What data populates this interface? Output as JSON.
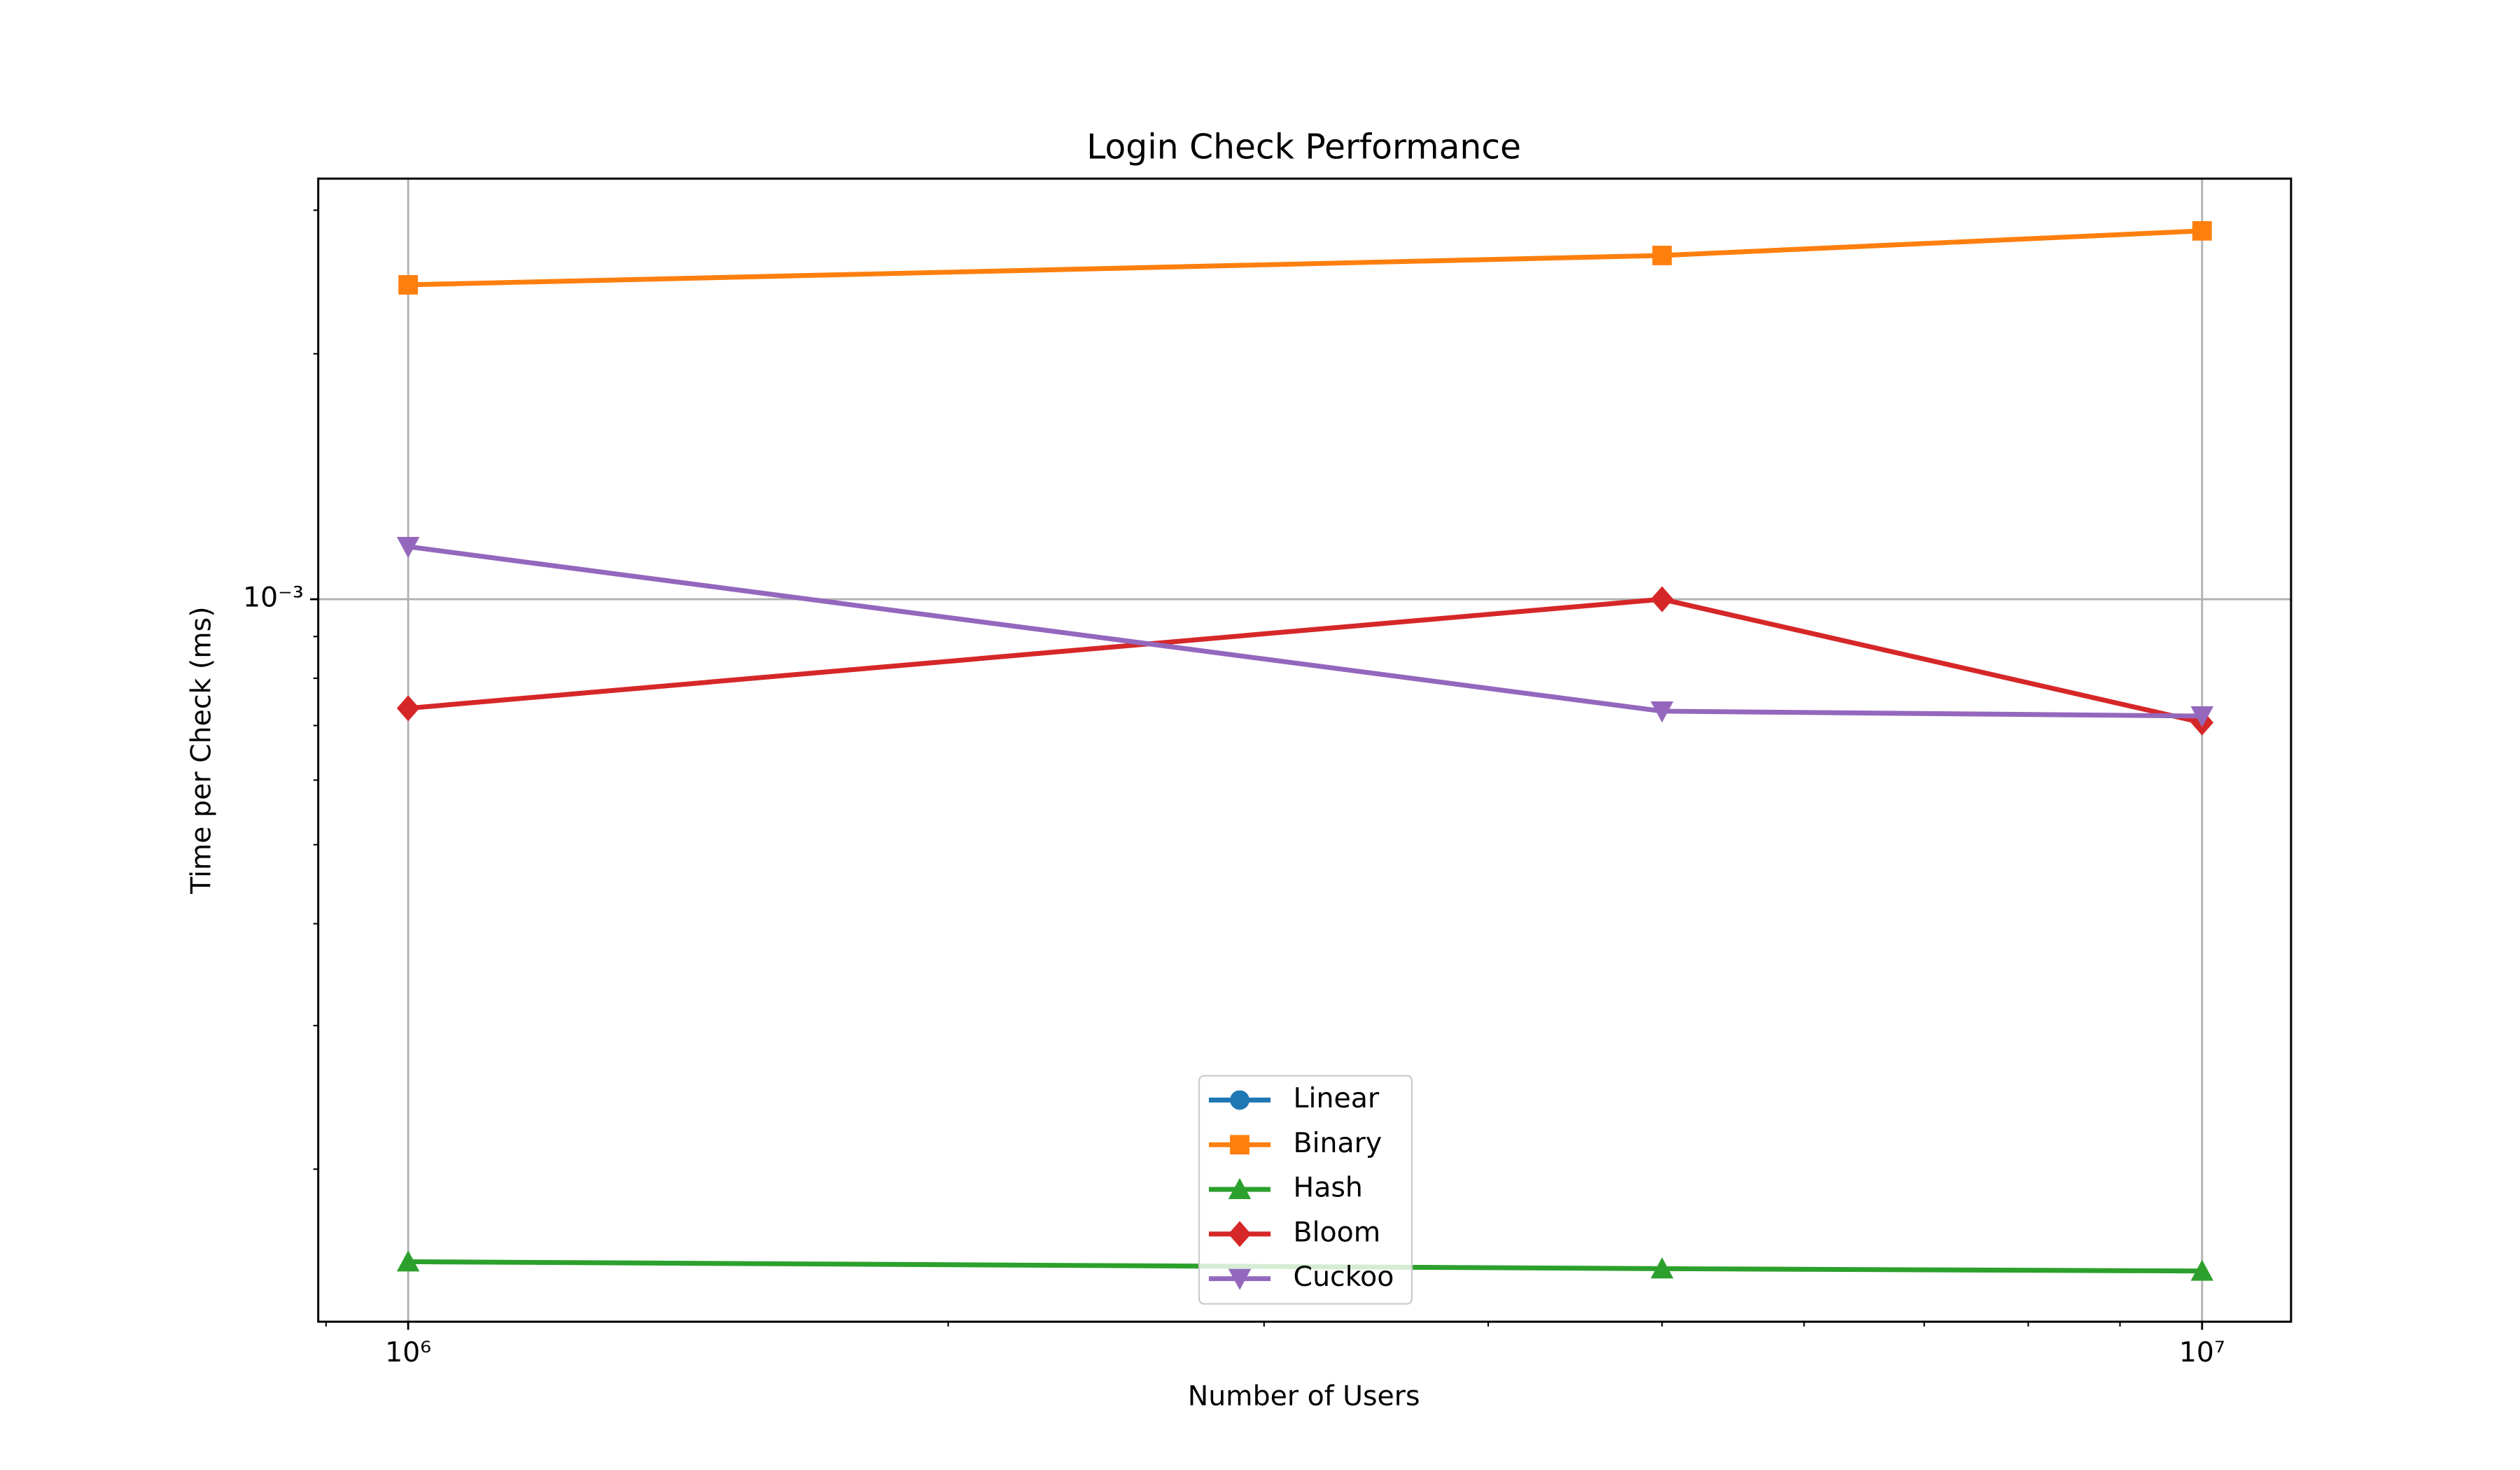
{
  "chart_data": {
    "type": "line",
    "title": "Login Check Performance",
    "xlabel": "Number of Users",
    "ylabel": "Time per Check (ms)",
    "x": [
      1000000,
      5000000,
      10000000
    ],
    "series": [
      {
        "name": "Linear",
        "color": "#1f77b4",
        "marker": "circle",
        "values": [
          null,
          null,
          null
        ]
      },
      {
        "name": "Binary",
        "color": "#ff7f0e",
        "marker": "square",
        "values": [
          0.00243,
          0.00264,
          0.00283
        ]
      },
      {
        "name": "Hash",
        "color": "#2ca02c",
        "marker": "triangle-up",
        "values": [
          0.000154,
          0.000151,
          0.00015
        ]
      },
      {
        "name": "Bloom",
        "color": "#d62728",
        "marker": "diamond",
        "values": [
          0.000735,
          0.001,
          0.000706
        ]
      },
      {
        "name": "Cuckoo",
        "color": "#9467bd",
        "marker": "triangle-down",
        "values": [
          0.00116,
          0.000729,
          0.000719
        ]
      }
    ],
    "xscale": "log",
    "yscale": "log",
    "xlim": [
      891000,
      11210000
    ],
    "ylim": [
      0.00013,
      0.00328
    ],
    "xticks": [
      {
        "value": 1000000,
        "label": "10⁶"
      },
      {
        "value": 10000000,
        "label": "10⁷"
      }
    ],
    "yticks": [
      {
        "value": 0.001,
        "label": "10⁻³"
      }
    ],
    "xminorticks": [
      900000,
      2000000,
      3000000,
      4000000,
      5000000,
      6000000,
      7000000,
      8000000,
      9000000
    ],
    "yminorticks": [
      0.0002,
      0.0003,
      0.0004,
      0.0005,
      0.0006,
      0.0007,
      0.0008,
      0.0009,
      0.002,
      0.003
    ],
    "grid": true,
    "legend": "lower center"
  }
}
